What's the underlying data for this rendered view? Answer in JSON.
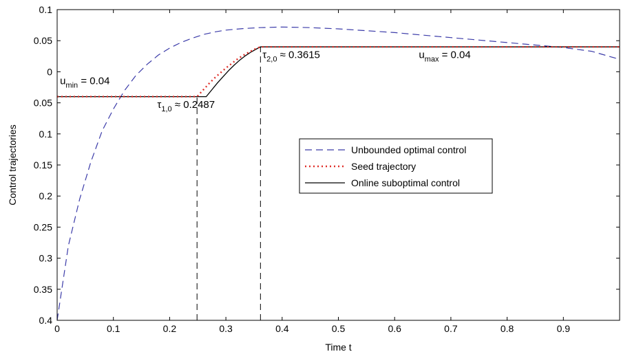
{
  "chart_data": {
    "type": "line",
    "title": "",
    "xlabel": "Time t",
    "ylabel": "Control trajectories",
    "xlim": [
      0,
      1
    ],
    "ylim": [
      -0.4,
      0.1
    ],
    "x_ticks": [
      0,
      0.1,
      0.2,
      0.3,
      0.4,
      0.5,
      0.6,
      0.7,
      0.8,
      0.9
    ],
    "x_tick_labels": [
      "0",
      "0.1",
      "0.2",
      "0.3",
      "0.4",
      "0.5",
      "0.6",
      "0.7",
      "0.8",
      "0.9"
    ],
    "y_ticks": [
      0.1,
      0.05,
      0,
      -0.05,
      -0.1,
      -0.15,
      -0.2,
      -0.25,
      -0.3,
      -0.35,
      -0.4
    ],
    "y_tick_labels": [
      "0.1",
      "0.05",
      "0",
      "0.05",
      "0.1",
      "0.15",
      "0.2",
      "0.25",
      "0.3",
      "0.35",
      "0.4"
    ],
    "grid": false,
    "legend_position": "center-right",
    "series": [
      {
        "name": "Unbounded optimal control",
        "style": "dashed",
        "color": "#3a3aa8",
        "x": [
          0,
          0.02,
          0.04,
          0.06,
          0.08,
          0.1,
          0.12,
          0.14,
          0.16,
          0.18,
          0.2,
          0.22,
          0.24,
          0.26,
          0.28,
          0.3,
          0.33,
          0.36,
          0.4,
          0.45,
          0.5,
          0.55,
          0.6,
          0.65,
          0.7,
          0.75,
          0.8,
          0.85,
          0.9,
          0.95,
          1.0
        ],
        "y": [
          -0.4,
          -0.28,
          -0.205,
          -0.145,
          -0.095,
          -0.06,
          -0.03,
          -0.006,
          0.012,
          0.027,
          0.038,
          0.047,
          0.054,
          0.06,
          0.064,
          0.067,
          0.0695,
          0.071,
          0.072,
          0.071,
          0.069,
          0.066,
          0.063,
          0.059,
          0.055,
          0.051,
          0.047,
          0.043,
          0.039,
          0.033,
          0.02
        ]
      },
      {
        "name": "Seed trajectory",
        "style": "dotted",
        "color": "#e0302a",
        "x": [
          0,
          0.2487,
          0.26,
          0.27,
          0.28,
          0.29,
          0.3,
          0.31,
          0.32,
          0.33,
          0.34,
          0.35,
          0.3615,
          0.5,
          0.7,
          0.9,
          1.0
        ],
        "y": [
          -0.04,
          -0.04,
          -0.029,
          -0.019,
          -0.01,
          -0.002,
          0.006,
          0.013,
          0.02,
          0.026,
          0.031,
          0.036,
          0.04,
          0.04,
          0.04,
          0.04,
          0.04
        ]
      },
      {
        "name": "Online suboptimal control",
        "style": "solid",
        "color": "#000000",
        "x": [
          0,
          0.2487,
          0.265,
          0.275,
          0.285,
          0.295,
          0.305,
          0.315,
          0.325,
          0.335,
          0.345,
          0.355,
          0.3615,
          0.5,
          0.7,
          0.9,
          1.0
        ],
        "y": [
          -0.04,
          -0.04,
          -0.04,
          -0.029,
          -0.018,
          -0.008,
          0.002,
          0.011,
          0.019,
          0.026,
          0.032,
          0.037,
          0.04,
          0.04,
          0.04,
          0.04,
          0.04
        ]
      }
    ],
    "vertical_markers": [
      {
        "x": 0.2487,
        "y_from": -0.4,
        "y_to": -0.04
      },
      {
        "x": 0.3615,
        "y_from": -0.4,
        "y_to": 0.04
      }
    ],
    "annotations": [
      {
        "id": "umin",
        "main": "u",
        "sub": "min",
        "rest": " =  0.04",
        "x": 0.005,
        "y": -0.02
      },
      {
        "id": "tau1",
        "main": "τ",
        "sub": "1,0",
        "rest": " ≈ 0.2487",
        "x": 0.178,
        "y": -0.058
      },
      {
        "id": "tau2",
        "main": "τ",
        "sub": "2,0",
        "rest": " ≈ 0.3615",
        "x": 0.365,
        "y": 0.022
      },
      {
        "id": "umax",
        "main": "u",
        "sub": "max",
        "rest": " = 0.04",
        "x": 0.643,
        "y": 0.022
      }
    ]
  }
}
